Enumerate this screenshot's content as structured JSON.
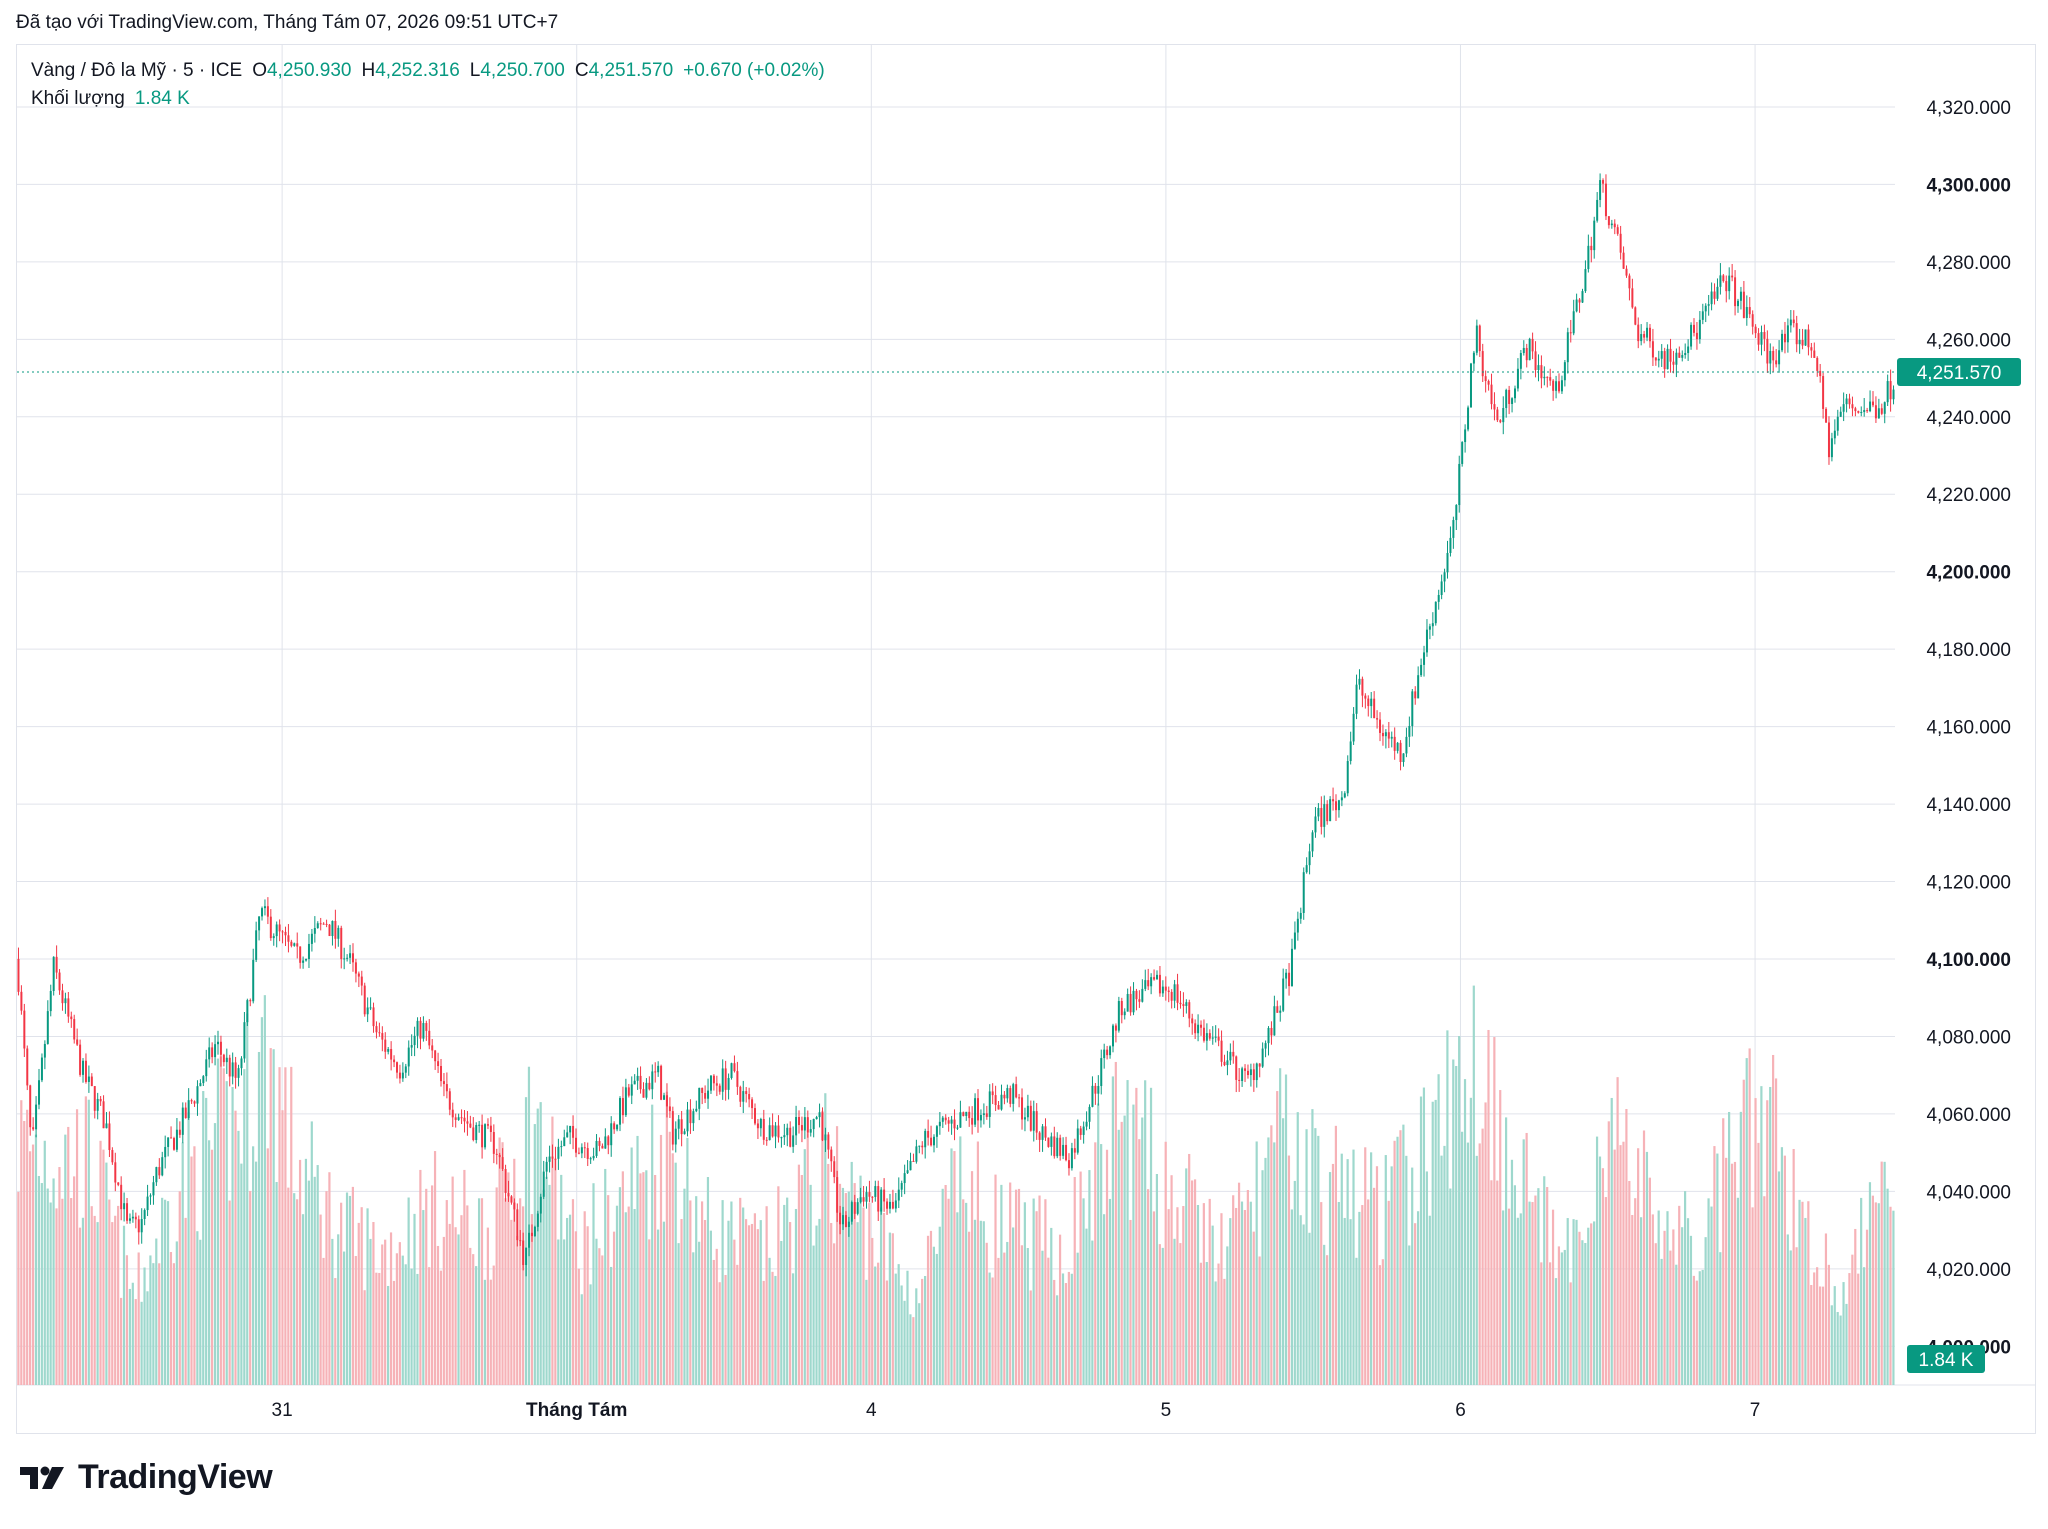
{
  "header": {
    "created_with": "Đã tạo với TradingView.com, Tháng Tám 07, 2026 09:51 UTC+7"
  },
  "legend": {
    "symbol": "Vàng / Đô la Mỹ · 5 · ICE",
    "o_label": "O",
    "o_value": "4,250.930",
    "h_label": "H",
    "h_value": "4,252.316",
    "l_label": "L",
    "l_value": "4,250.700",
    "c_label": "C",
    "c_value": "4,251.570",
    "change": "+0.670 (+0.02%)",
    "volume_label": "Khối lượng",
    "volume_value": "1.84 K"
  },
  "footer": {
    "brand": "TradingView"
  },
  "colors": {
    "up": "#089981",
    "down": "#f23645",
    "grid": "#e0e3eb",
    "text": "#131722",
    "volume_up": "#9ed8cd",
    "volume_down": "#f6b2b7"
  },
  "chart_data": {
    "type": "candlestick",
    "title": "Vàng / Đô la Mỹ · 5 · ICE",
    "ylim": [
      3990,
      4336
    ],
    "y_ticks": [
      {
        "value": 4320,
        "label": "4,320.000",
        "bold": false
      },
      {
        "value": 4300,
        "label": "4,300.000",
        "bold": true
      },
      {
        "value": 4280,
        "label": "4,280.000",
        "bold": false
      },
      {
        "value": 4260,
        "label": "4,260.000",
        "bold": false
      },
      {
        "value": 4240,
        "label": "4,240.000",
        "bold": false
      },
      {
        "value": 4220,
        "label": "4,220.000",
        "bold": false
      },
      {
        "value": 4200,
        "label": "4,200.000",
        "bold": true
      },
      {
        "value": 4180,
        "label": "4,180.000",
        "bold": false
      },
      {
        "value": 4160,
        "label": "4,160.000",
        "bold": false
      },
      {
        "value": 4140,
        "label": "4,140.000",
        "bold": false
      },
      {
        "value": 4120,
        "label": "4,120.000",
        "bold": false
      },
      {
        "value": 4100,
        "label": "4,100.000",
        "bold": true
      },
      {
        "value": 4080,
        "label": "4,080.000",
        "bold": false
      },
      {
        "value": 4060,
        "label": "4,060.000",
        "bold": false
      },
      {
        "value": 4040,
        "label": "4,040.000",
        "bold": false
      },
      {
        "value": 4020,
        "label": "4,020.000",
        "bold": false
      },
      {
        "value": 4000,
        "label": "4,000.000",
        "bold": true
      }
    ],
    "x_ticks": [
      {
        "x": 1.9,
        "label": "31",
        "bold": false
      },
      {
        "x": 3.9,
        "label": "Tháng Tám",
        "bold": true
      },
      {
        "x": 5.9,
        "label": "4",
        "bold": false
      },
      {
        "x": 7.9,
        "label": "5",
        "bold": false
      },
      {
        "x": 9.9,
        "label": "6",
        "bold": false
      },
      {
        "x": 11.9,
        "label": "7",
        "bold": false
      }
    ],
    "xlim": [
      0.1,
      12.85
    ],
    "price_path": [
      [
        0.1,
        4100
      ],
      [
        0.2,
        4050
      ],
      [
        0.35,
        4098
      ],
      [
        0.55,
        4070
      ],
      [
        0.7,
        4058
      ],
      [
        0.85,
        4030
      ],
      [
        0.95,
        4032
      ],
      [
        1.05,
        4045
      ],
      [
        1.25,
        4060
      ],
      [
        1.45,
        4078
      ],
      [
        1.6,
        4068
      ],
      [
        1.75,
        4112
      ],
      [
        1.9,
        4105
      ],
      [
        2.0,
        4100
      ],
      [
        2.2,
        4110
      ],
      [
        2.35,
        4100
      ],
      [
        2.55,
        4080
      ],
      [
        2.7,
        4072
      ],
      [
        2.85,
        4083
      ],
      [
        3.0,
        4065
      ],
      [
        3.15,
        4058
      ],
      [
        3.35,
        4052
      ],
      [
        3.55,
        4022
      ],
      [
        3.7,
        4048
      ],
      [
        3.85,
        4054
      ],
      [
        4.05,
        4050
      ],
      [
        4.25,
        4065
      ],
      [
        4.45,
        4070
      ],
      [
        4.55,
        4055
      ],
      [
        4.8,
        4067
      ],
      [
        4.95,
        4070
      ],
      [
        5.15,
        4057
      ],
      [
        5.35,
        4055
      ],
      [
        5.55,
        4060
      ],
      [
        5.7,
        4030
      ],
      [
        5.85,
        4040
      ],
      [
        6.05,
        4035
      ],
      [
        6.25,
        4053
      ],
      [
        6.45,
        4058
      ],
      [
        6.65,
        4062
      ],
      [
        6.85,
        4065
      ],
      [
        7.05,
        4055
      ],
      [
        7.25,
        4049
      ],
      [
        7.4,
        4065
      ],
      [
        7.6,
        4088
      ],
      [
        7.85,
        4093
      ],
      [
        7.95,
        4092
      ],
      [
        8.1,
        4083
      ],
      [
        8.3,
        4075
      ],
      [
        8.45,
        4068
      ],
      [
        8.6,
        4080
      ],
      [
        8.75,
        4098
      ],
      [
        8.9,
        4135
      ],
      [
        9.1,
        4142
      ],
      [
        9.2,
        4171
      ],
      [
        9.35,
        4160
      ],
      [
        9.5,
        4153
      ],
      [
        9.65,
        4180
      ],
      [
        9.85,
        4210
      ],
      [
        10.0,
        4262
      ],
      [
        10.15,
        4238
      ],
      [
        10.35,
        4258
      ],
      [
        10.55,
        4246
      ],
      [
        10.75,
        4278
      ],
      [
        10.85,
        4300
      ],
      [
        11.0,
        4280
      ],
      [
        11.1,
        4262
      ],
      [
        11.3,
        4255
      ],
      [
        11.5,
        4262
      ],
      [
        11.7,
        4276
      ],
      [
        11.85,
        4266
      ],
      [
        12.0,
        4255
      ],
      [
        12.15,
        4262
      ],
      [
        12.3,
        4258
      ],
      [
        12.4,
        4232
      ],
      [
        12.5,
        4243
      ],
      [
        12.65,
        4242
      ],
      [
        12.75,
        4243
      ],
      [
        12.85,
        4250
      ]
    ],
    "volume_envelope": [
      [
        0.1,
        0.55
      ],
      [
        0.6,
        0.5
      ],
      [
        0.9,
        0.2
      ],
      [
        1.2,
        0.45
      ],
      [
        1.6,
        0.6
      ],
      [
        1.8,
        0.75
      ],
      [
        2.0,
        0.5
      ],
      [
        2.3,
        0.35
      ],
      [
        2.6,
        0.3
      ],
      [
        2.9,
        0.4
      ],
      [
        3.3,
        0.35
      ],
      [
        3.6,
        0.6
      ],
      [
        3.9,
        0.3
      ],
      [
        4.3,
        0.45
      ],
      [
        4.5,
        0.55
      ],
      [
        4.8,
        0.35
      ],
      [
        5.2,
        0.3
      ],
      [
        5.6,
        0.5
      ],
      [
        5.9,
        0.35
      ],
      [
        6.2,
        0.2
      ],
      [
        6.5,
        0.45
      ],
      [
        6.8,
        0.35
      ],
      [
        7.2,
        0.3
      ],
      [
        7.6,
        0.6
      ],
      [
        7.9,
        0.45
      ],
      [
        8.3,
        0.3
      ],
      [
        8.7,
        0.55
      ],
      [
        9.0,
        0.45
      ],
      [
        9.4,
        0.4
      ],
      [
        9.8,
        0.6
      ],
      [
        10.0,
        0.75
      ],
      [
        10.3,
        0.5
      ],
      [
        10.6,
        0.25
      ],
      [
        10.9,
        0.6
      ],
      [
        11.2,
        0.4
      ],
      [
        11.5,
        0.3
      ],
      [
        11.8,
        0.55
      ],
      [
        12.0,
        0.6
      ],
      [
        12.3,
        0.3
      ],
      [
        12.55,
        0.2
      ],
      [
        12.7,
        0.5
      ],
      [
        12.85,
        0.45
      ]
    ],
    "last_price": 4251.57,
    "last_price_label": "4,251.570",
    "volume_last_label": "1.84 K"
  }
}
